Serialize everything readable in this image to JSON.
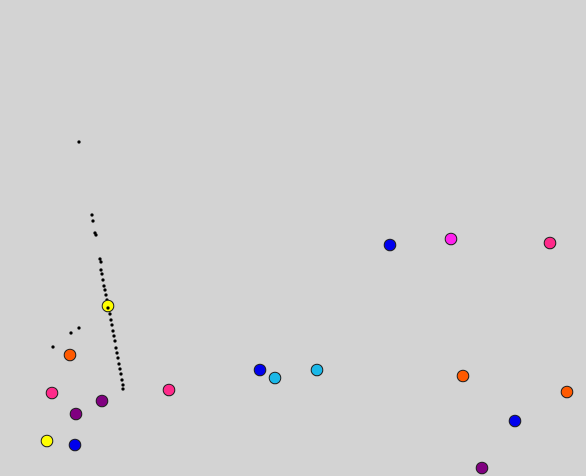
{
  "game": {
    "background_color": "#d3d3d3",
    "outline_color": "#222222",
    "trail_color": "#000000",
    "palette": {
      "yellow": "#ffff00",
      "orange": "#ff5a00",
      "pink": "#ff2a8a",
      "purple": "#800080",
      "blue": "#0000ee",
      "cyan": "#1ab8e8",
      "magenta": "#ff22ee"
    },
    "balls": [
      {
        "color": "yellow"
      },
      {
        "color": "orange"
      },
      {
        "color": "pink"
      },
      {
        "color": "purple"
      },
      {
        "color": "purple"
      },
      {
        "color": "pink"
      },
      {
        "color": "yellow"
      },
      {
        "color": "blue"
      },
      {
        "color": "blue"
      },
      {
        "color": "cyan"
      },
      {
        "color": "cyan"
      },
      {
        "color": "blue"
      },
      {
        "color": "magenta"
      },
      {
        "color": "pink"
      },
      {
        "color": "orange"
      },
      {
        "color": "orange"
      },
      {
        "color": "blue"
      },
      {
        "color": "purple"
      }
    ]
  }
}
